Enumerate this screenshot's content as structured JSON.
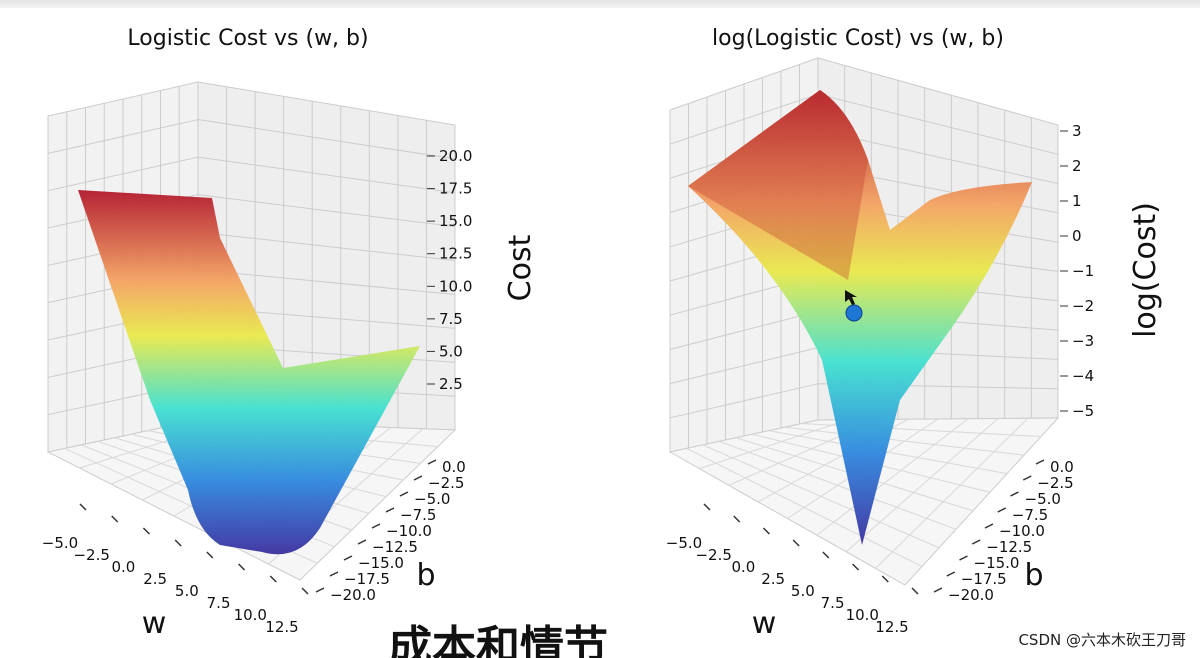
{
  "chart_data": [
    {
      "type": "surface3d",
      "title": "Logistic Cost vs (w, b)",
      "xlabel": "w",
      "ylabel": "b",
      "zlabel": "Cost",
      "w_ticks": [
        "−5.0",
        "−2.5",
        "0.0",
        "2.5",
        "5.0",
        "7.5",
        "10.0",
        "12.5"
      ],
      "b_ticks": [
        "0.0",
        "−2.5",
        "−5.0",
        "−7.5",
        "−10.0",
        "−12.5",
        "−15.0",
        "−17.5",
        "−20.0"
      ],
      "z_ticks": [
        "2.5",
        "5.0",
        "7.5",
        "10.0",
        "12.5",
        "15.0",
        "17.5",
        "20.0"
      ],
      "wlim": [
        -6,
        13
      ],
      "blim": [
        -21,
        1
      ],
      "zlim": [
        0,
        22
      ],
      "colormap": "jet"
    },
    {
      "type": "surface3d",
      "title": "log(Logistic Cost) vs (w, b)",
      "xlabel": "w",
      "ylabel": "b",
      "zlabel": "log(Cost)",
      "w_ticks": [
        "−5.0",
        "−2.5",
        "0.0",
        "2.5",
        "5.0",
        "7.5",
        "10.0",
        "12.5"
      ],
      "b_ticks": [
        "0.0",
        "−2.5",
        "−5.0",
        "−7.5",
        "−10.0",
        "−12.5",
        "−15.0",
        "−17.5",
        "−20.0"
      ],
      "z_ticks": [
        "−5",
        "−4",
        "−3",
        "−2",
        "−1",
        "0",
        "1",
        "2",
        "3"
      ],
      "wlim": [
        -6,
        13
      ],
      "blim": [
        -21,
        1
      ],
      "zlim": [
        -5.5,
        3.5
      ],
      "colormap": "jet",
      "marker_label": ""
    }
  ],
  "video_subtitle": "成本和情节",
  "watermark": "CSDN @六本木砍王刀哥",
  "colors": {
    "grid": "#cccccc",
    "pane": "#f2f2f2",
    "marker": "#1f77d4",
    "text": "#111111"
  }
}
